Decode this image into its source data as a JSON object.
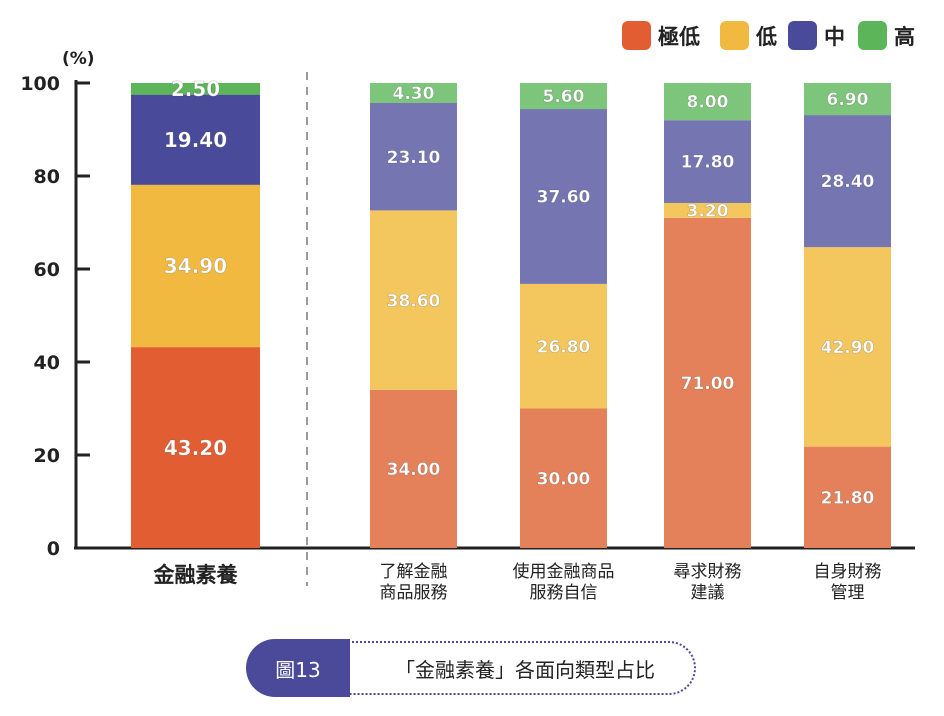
{
  "chart_data": {
    "type": "bar",
    "stacked": true,
    "ylabel": "(%)",
    "ylim": [
      0,
      100
    ],
    "yticks": [
      0,
      20,
      40,
      60,
      80,
      100
    ],
    "categories": [
      [
        "金融素養"
      ],
      [
        "了解金融",
        "商品服務"
      ],
      [
        "使用金融商品",
        "服務自信"
      ],
      [
        "尋求財務",
        "建議"
      ],
      [
        "自身財務",
        "管理"
      ]
    ],
    "series": [
      {
        "name": "極低",
        "values": [
          43.2,
          34.0,
          30.0,
          71.0,
          21.8
        ],
        "labels": [
          "43.20",
          "34.00",
          "30.00",
          "71.00",
          "21.80"
        ]
      },
      {
        "name": "低",
        "values": [
          34.9,
          38.6,
          26.8,
          3.2,
          42.9
        ],
        "labels": [
          "34.90",
          "38.60",
          "26.80",
          "3.20",
          "42.90"
        ]
      },
      {
        "name": "中",
        "values": [
          19.4,
          23.1,
          37.6,
          17.8,
          28.4
        ],
        "labels": [
          "19.40",
          "23.10",
          "37.60",
          "17.80",
          "28.40"
        ]
      },
      {
        "name": "高",
        "values": [
          2.5,
          4.3,
          5.6,
          8.0,
          6.9
        ],
        "labels": [
          "2.50",
          "4.30",
          "5.60",
          "8.00",
          "6.90"
        ]
      }
    ],
    "colors": {
      "primary": [
        "#e25e32",
        "#f2b940",
        "#4a4a9b",
        "#5cb559"
      ],
      "secondary": [
        "#e4805a",
        "#f4c65e",
        "#7575b2",
        "#7cc57a"
      ]
    },
    "legend_position": "top-right"
  },
  "caption": {
    "figure_label": "圖13",
    "title": "「金融素養」各面向類型占比"
  }
}
